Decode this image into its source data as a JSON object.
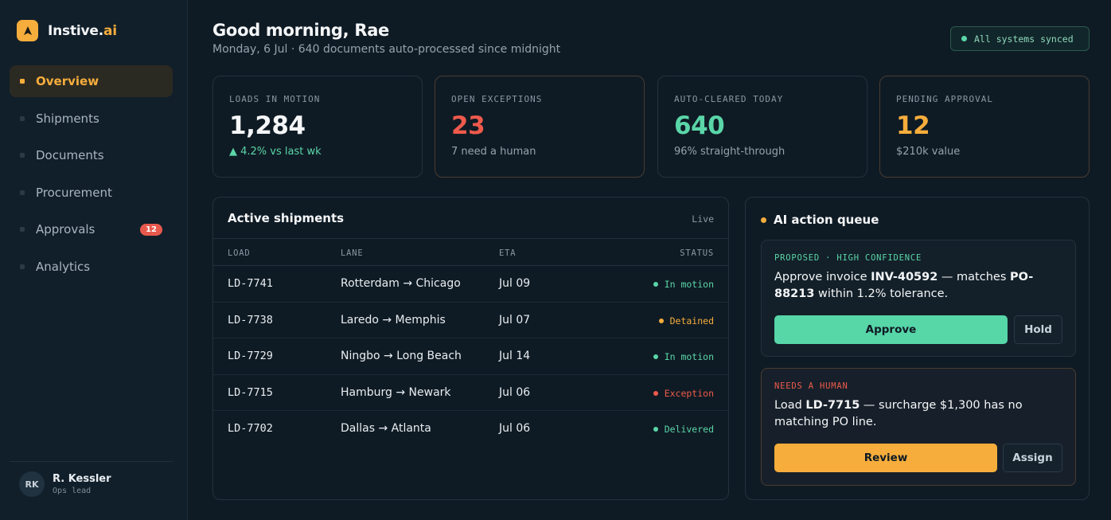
{
  "brand": {
    "name_main": "Instive.",
    "name_accent": "ai"
  },
  "nav": [
    {
      "label": "Overview"
    },
    {
      "label": "Shipments"
    },
    {
      "label": "Documents"
    },
    {
      "label": "Procurement"
    },
    {
      "label": "Approvals",
      "badge": "12"
    },
    {
      "label": "Analytics"
    }
  ],
  "user": {
    "initials": "RK",
    "name": "R. Kessler",
    "role": "Ops lead"
  },
  "header": {
    "greeting": "Good morning, Rae",
    "subline": "Monday, 6 Jul · 640 documents auto-processed since midnight",
    "sync_status": "All systems synced"
  },
  "stats": [
    {
      "label": "LOADS IN MOTION",
      "value": "1,284",
      "sub": "▲ 4.2% vs last wk"
    },
    {
      "label": "OPEN EXCEPTIONS",
      "value": "23",
      "sub": "7 need a human"
    },
    {
      "label": "AUTO-CLEARED TODAY",
      "value": "640",
      "sub": "96% straight-through"
    },
    {
      "label": "PENDING APPROVAL",
      "value": "12",
      "sub": "$210k value"
    }
  ],
  "shipments": {
    "title": "Active shipments",
    "live_label": "Live",
    "columns": {
      "load": "LOAD",
      "lane": "LANE",
      "eta": "ETA",
      "status": "STATUS"
    },
    "rows": [
      {
        "load": "LD-7741",
        "lane": "Rotterdam → Chicago",
        "eta": "Jul 09",
        "status": "In motion"
      },
      {
        "load": "LD-7738",
        "lane": "Laredo → Memphis",
        "eta": "Jul 07",
        "status": "Detained"
      },
      {
        "load": "LD-7729",
        "lane": "Ningbo → Long Beach",
        "eta": "Jul 14",
        "status": "In motion"
      },
      {
        "load": "LD-7715",
        "lane": "Hamburg → Newark",
        "eta": "Jul 06",
        "status": "Exception"
      },
      {
        "load": "LD-7702",
        "lane": "Dallas → Atlanta",
        "eta": "Jul 06",
        "status": "Delivered"
      }
    ]
  },
  "queue": {
    "title": "AI action queue",
    "cards": [
      {
        "tag": "PROPOSED · HIGH CONFIDENCE",
        "text_1": "Approve invoice ",
        "bold_1": "INV-40592",
        "text_2": " — matches ",
        "bold_2": "PO-88213",
        "text_3": " within 1.2% tolerance.",
        "primary": "Approve",
        "secondary": "Hold"
      },
      {
        "tag": "NEEDS A HUMAN",
        "text_1": "Load ",
        "bold_1": "LD-7715",
        "text_2": " — surcharge $1,300 has no matching PO line.",
        "primary": "Review",
        "secondary": "Assign"
      }
    ]
  },
  "colors": {
    "accent_amber": "#f6ad3c",
    "green": "#5ad6a8",
    "red": "#ef5a4c",
    "background": "#0f1b24"
  }
}
